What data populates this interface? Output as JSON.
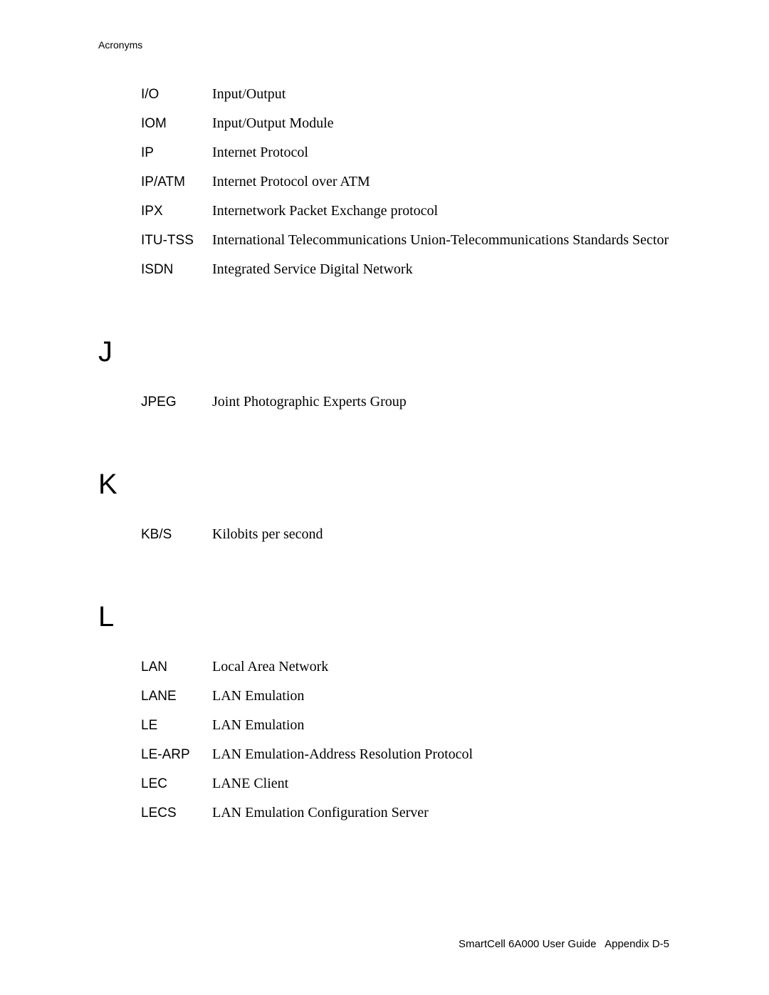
{
  "header": {
    "title": "Acronyms"
  },
  "sections": [
    {
      "letter": "",
      "entries": [
        {
          "term": "I/O",
          "def": "Input/Output"
        },
        {
          "term": "IOM",
          "def": "Input/Output Module"
        },
        {
          "term": "IP",
          "def": "Internet Protocol"
        },
        {
          "term": "IP/ATM",
          "def": "Internet Protocol over ATM"
        },
        {
          "term": "IPX",
          "def": "Internetwork Packet Exchange protocol"
        },
        {
          "term": "ITU-TSS",
          "def": "International Telecommunications Union-Telecommunications Standards Sector"
        },
        {
          "term": "ISDN",
          "def": "Integrated Service Digital Network"
        }
      ]
    },
    {
      "letter": "J",
      "entries": [
        {
          "term": "JPEG",
          "def": "Joint Photographic Experts Group"
        }
      ]
    },
    {
      "letter": "K",
      "entries": [
        {
          "term": "KB/S",
          "def": "Kilobits per second"
        }
      ]
    },
    {
      "letter": "L",
      "entries": [
        {
          "term": "LAN",
          "def": "Local Area Network"
        },
        {
          "term": "LANE",
          "def": "LAN Emulation"
        },
        {
          "term": "LE",
          "def": "LAN Emulation"
        },
        {
          "term": "LE-ARP",
          "def": "LAN Emulation-Address Resolution Protocol"
        },
        {
          "term": "LEC",
          "def": "LANE Client"
        },
        {
          "term": "LECS",
          "def": "LAN Emulation Configuration Server"
        }
      ]
    }
  ],
  "footer": {
    "text": "SmartCell 6A000 User Guide   Appendix D-5"
  }
}
